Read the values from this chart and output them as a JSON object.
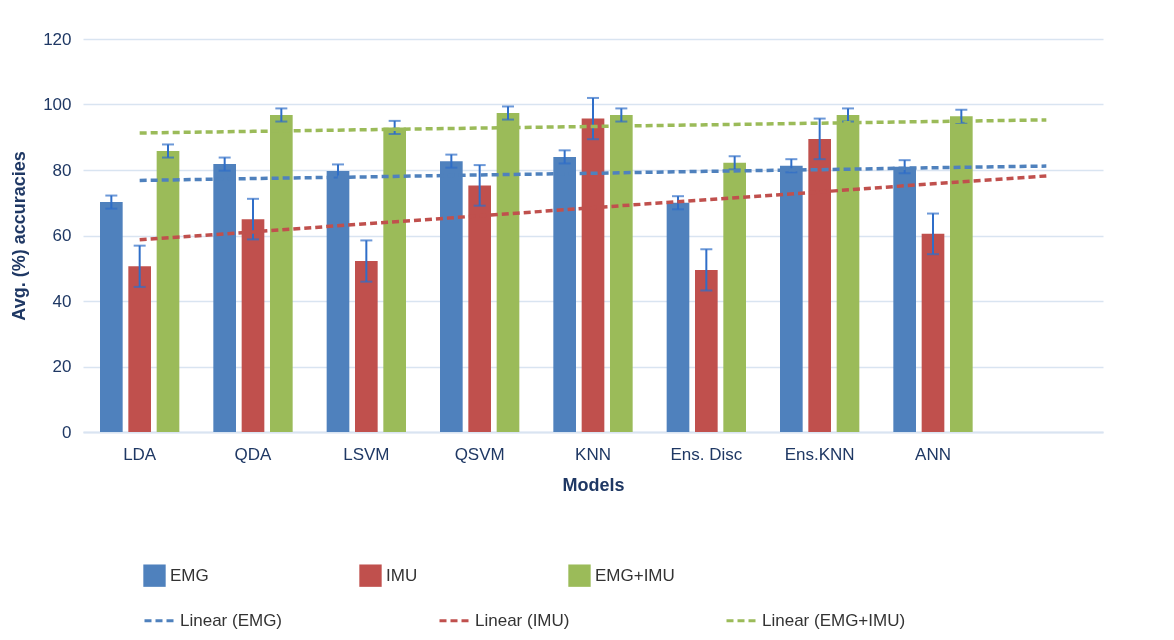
{
  "chart_data": {
    "type": "bar",
    "xlabel": "Models",
    "ylabel": "Avg. (%) accuracies",
    "categories": [
      "LDA",
      "QDA",
      "LSVM",
      "QSVM",
      "KNN",
      "Ens. Disc",
      "Ens.KNN",
      "ANN",
      null
    ],
    "ylim": [
      0,
      120
    ],
    "yticks": [
      0,
      20,
      40,
      60,
      80,
      100,
      120
    ],
    "grid": "y",
    "legend": "bottom",
    "marker": "none",
    "series": [
      {
        "name": "EMG",
        "color": "#4f81bd",
        "values": [
          70.2,
          81.8,
          79.7,
          82.7,
          84.0,
          70.0,
          81.3,
          81.0,
          null
        ],
        "errors": [
          2,
          2,
          2,
          2,
          2,
          2,
          2,
          2,
          null
        ]
      },
      {
        "name": "IMU",
        "color": "#c0504d",
        "values": [
          50.6,
          65.0,
          52.2,
          75.3,
          95.7,
          49.5,
          89.5,
          60.5,
          null
        ],
        "errors": [
          6.3,
          6.2,
          6.3,
          6.2,
          6.3,
          6.3,
          6.2,
          6.2,
          null
        ]
      },
      {
        "name": "EMG+IMU",
        "color": "#9bbb59",
        "values": [
          85.8,
          96.8,
          93.0,
          97.4,
          96.8,
          82.2,
          96.8,
          96.4,
          null
        ],
        "errors": [
          2,
          2,
          2,
          2,
          2,
          2,
          2,
          2,
          null
        ]
      },
      {
        "name": "Linear (EMG)",
        "type": "line",
        "line_style": "dashed",
        "color": "#4f81bd",
        "values": [
          76.8,
          77.4,
          77.9,
          78.5,
          79.0,
          79.6,
          80.1,
          80.7,
          81.2
        ]
      },
      {
        "name": "Linear (IMU)",
        "type": "line",
        "line_style": "dashed",
        "color": "#c0504d",
        "values": [
          58.7,
          61.1,
          63.6,
          66.0,
          68.5,
          70.9,
          73.3,
          75.8,
          78.2
        ]
      },
      {
        "name": "Linear (EMG+IMU)",
        "type": "line",
        "line_style": "dashed",
        "color": "#9bbb59",
        "values": [
          91.3,
          91.8,
          92.3,
          92.8,
          93.3,
          93.8,
          94.3,
          94.8,
          95.3
        ]
      }
    ]
  }
}
